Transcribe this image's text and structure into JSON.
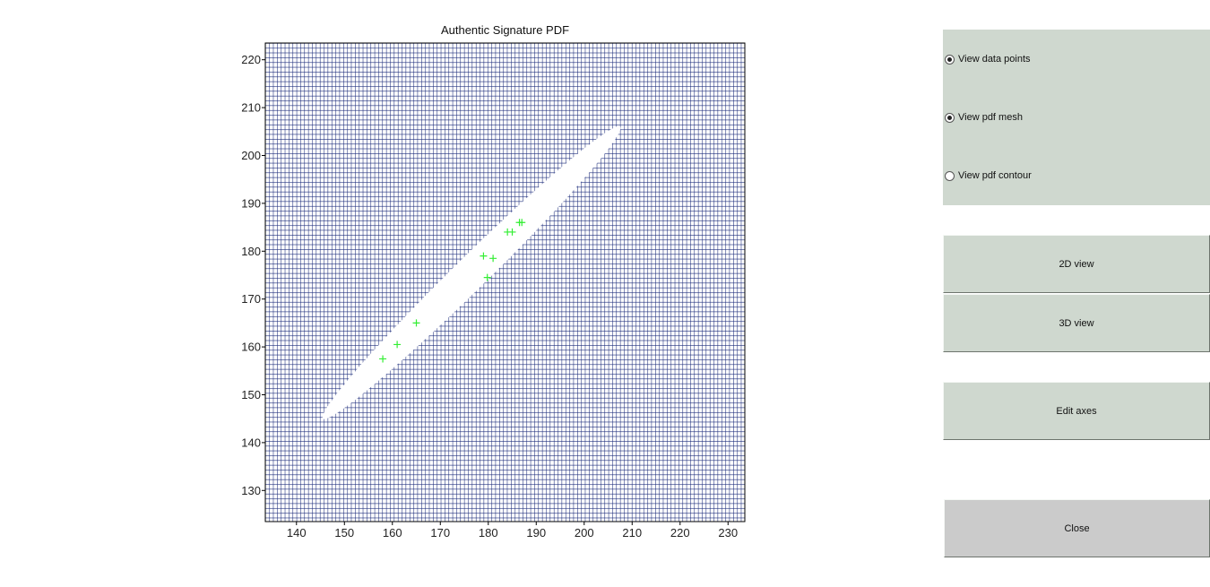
{
  "window": {
    "background": "#ffffff"
  },
  "controls": {
    "radios": [
      {
        "label": "View data points",
        "checked": true
      },
      {
        "label": "View pdf mesh",
        "checked": true
      },
      {
        "label": "View pdf contour",
        "checked": false
      }
    ],
    "buttons": {
      "view2d": "2D view",
      "view3d": "3D view",
      "edit_axes": "Edit axes",
      "close": "Close"
    }
  },
  "chart_data": {
    "type": "scatter",
    "title": "Authentic Signature PDF",
    "xlabel": "",
    "ylabel": "",
    "xlim": [
      133.5,
      233.5
    ],
    "ylim": [
      123.5,
      223.5
    ],
    "xticks": [
      140,
      150,
      160,
      170,
      180,
      190,
      200,
      210,
      220,
      230
    ],
    "yticks": [
      130,
      140,
      150,
      160,
      170,
      180,
      190,
      200,
      210,
      220
    ],
    "mesh": {
      "color": "#1a2a7a",
      "step": 1,
      "visible": true
    },
    "pdf_region": {
      "shape": "ellipse",
      "center": [
        176.5,
        175.5
      ],
      "major_axis_end_low": [
        145.5,
        145
      ],
      "major_axis_end_high": [
        207.5,
        206
      ],
      "half_minor_width": 2.4
    },
    "series": [
      {
        "marker": "+",
        "color": "#33ee33",
        "x": [
          158,
          161,
          165,
          179,
          179.8,
          181,
          184,
          185,
          186.5,
          187
        ],
        "y": [
          157.5,
          160.5,
          165,
          179,
          174.5,
          178.5,
          184,
          184,
          186,
          186
        ]
      }
    ]
  }
}
